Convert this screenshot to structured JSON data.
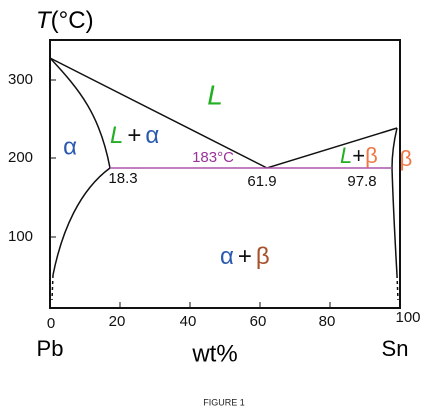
{
  "axis": {
    "y_symbol": "T",
    "y_unit": "(°C)",
    "x_label": "wt%",
    "y_ticks": [
      "300",
      "200",
      "100"
    ],
    "x_ticks": [
      "0",
      "20",
      "40",
      "60",
      "80",
      "100"
    ],
    "left_element": "Pb",
    "right_element": "Sn"
  },
  "regions": {
    "liquid": "L",
    "alpha": "α",
    "beta": "β",
    "liquid_alpha": {
      "liquid": "L",
      "plus": "+",
      "alpha": "α"
    },
    "liquid_beta": {
      "liquid": "L",
      "plus": "+",
      "beta": "β"
    },
    "alpha_beta": {
      "alpha": "α",
      "plus": "+",
      "beta": "β"
    }
  },
  "eutectic": {
    "temperature": "183°C",
    "alpha_composition": "18.3",
    "eutectic_composition": "61.9",
    "beta_composition": "97.8"
  },
  "caption": "FIGURE 1"
}
